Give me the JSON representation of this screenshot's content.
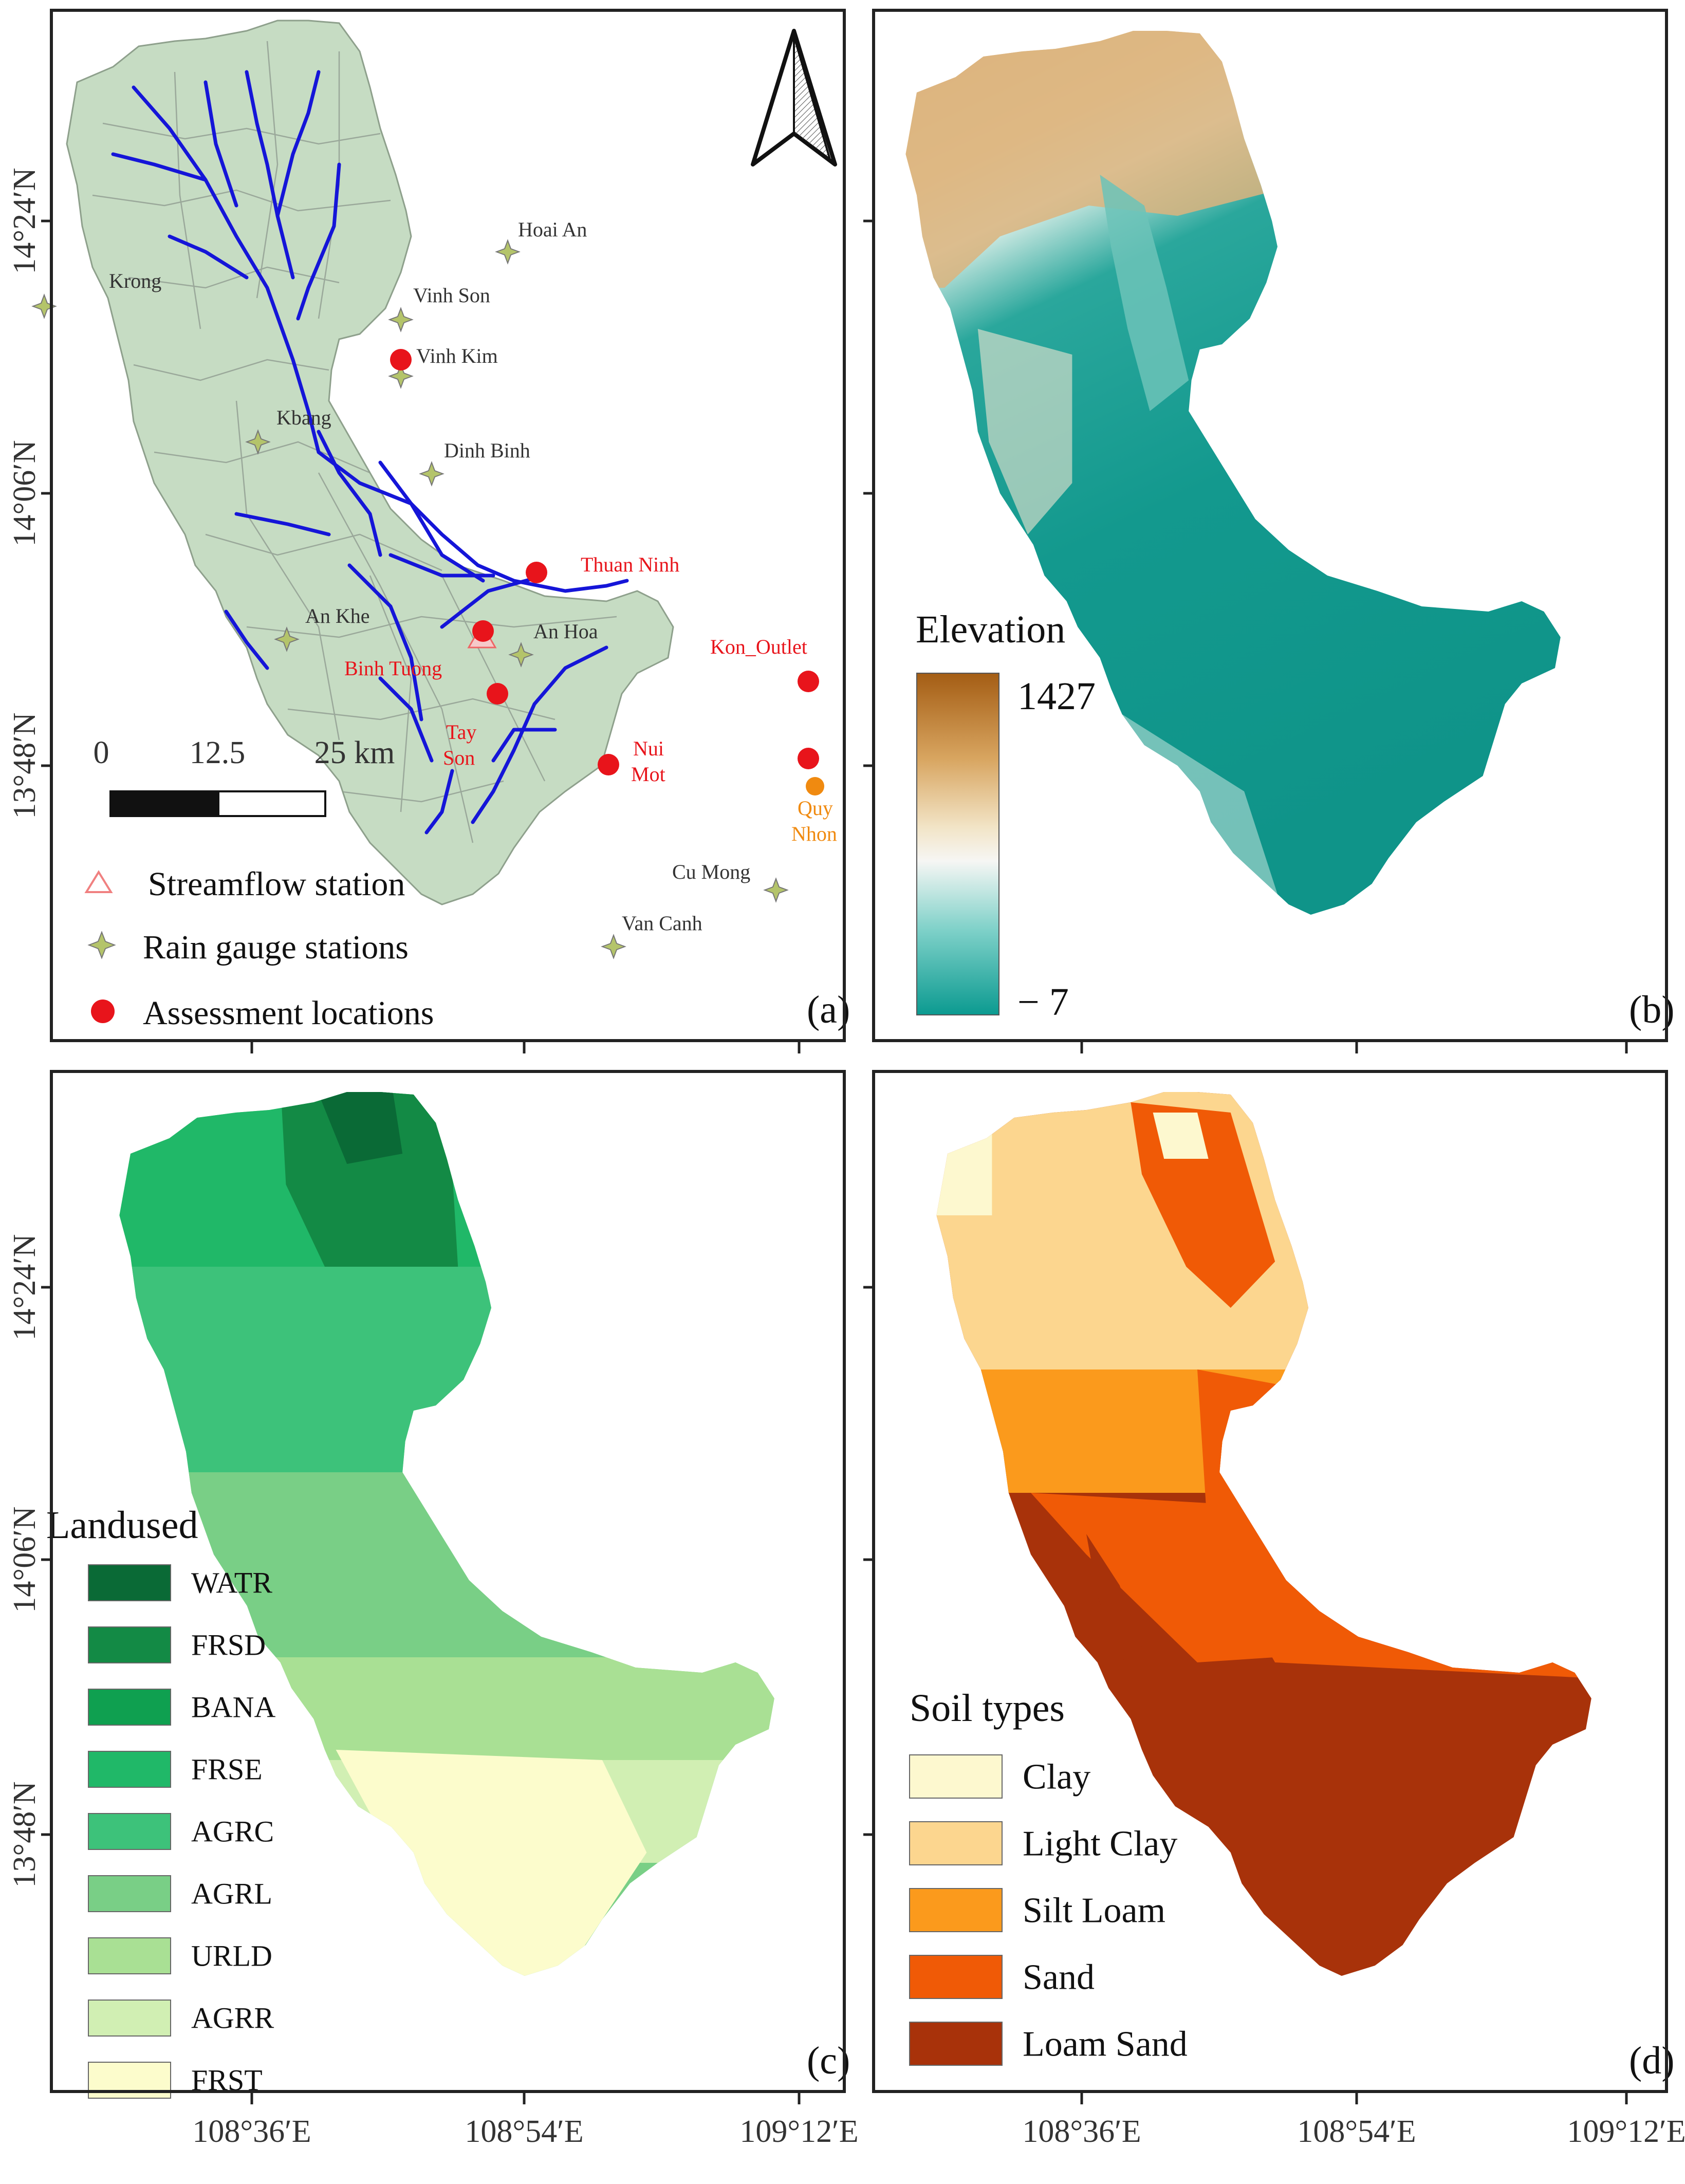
{
  "lat_labels": [
    "14°24′N",
    "14°06′N",
    "13°48′N"
  ],
  "lon_labels": [
    "108°36′E",
    "108°54′E",
    "109°12′E"
  ],
  "panels": {
    "a": {
      "tag": "(a)",
      "scalebar": {
        "zero": "0",
        "mid": "12.5",
        "end": "25 km"
      },
      "rain_gauges": [
        "Hoai An",
        "Krong",
        "Vinh Son",
        "Vinh Kim",
        "Kbang",
        "Dinh Binh",
        "An Khe",
        "An Hoa",
        "Cu Mong",
        "Van Canh"
      ],
      "assessment_labels": [
        "Thuan Ninh",
        "Kon_Outlet",
        "Binh Tuong",
        "Tay",
        "Son",
        "Nui",
        "Mot"
      ],
      "extra_label": [
        "Quy",
        "Nhon"
      ],
      "legend": [
        "Streamflow station",
        "Rain gauge stations",
        "Assessment locations"
      ]
    },
    "b": {
      "tag": "(b)",
      "title": "Elevation",
      "max": "1427",
      "min": "− 7"
    },
    "c": {
      "tag": "(c)",
      "title": "Landused",
      "classes": [
        {
          "name": "WATR",
          "color": "#0a6a36"
        },
        {
          "name": "FRSD",
          "color": "#138a45"
        },
        {
          "name": "BANA",
          "color": "#0fa050"
        },
        {
          "name": "FRSE",
          "color": "#20b868"
        },
        {
          "name": "AGRC",
          "color": "#3dc27a"
        },
        {
          "name": "AGRL",
          "color": "#79cf86"
        },
        {
          "name": "URLD",
          "color": "#a9e094"
        },
        {
          "name": "AGRR",
          "color": "#d1efb3"
        },
        {
          "name": "FRST",
          "color": "#fcfccc"
        }
      ]
    },
    "d": {
      "tag": "(d)",
      "title": "Soil types",
      "classes": [
        {
          "name": "Clay",
          "color": "#fdf8cf"
        },
        {
          "name": "Light Clay",
          "color": "#fcd68f"
        },
        {
          "name": "Silt Loam",
          "color": "#fb9a1c"
        },
        {
          "name": "Sand",
          "color": "#f05a06"
        },
        {
          "name": "Loam Sand",
          "color": "#a8320a"
        }
      ]
    }
  },
  "colors": {
    "basin_fill": "#c6dcc3",
    "river": "#1515d8",
    "assessment": "#e8141b",
    "quy_nhon": "#f08a10",
    "gauge": "#b4c46a"
  }
}
